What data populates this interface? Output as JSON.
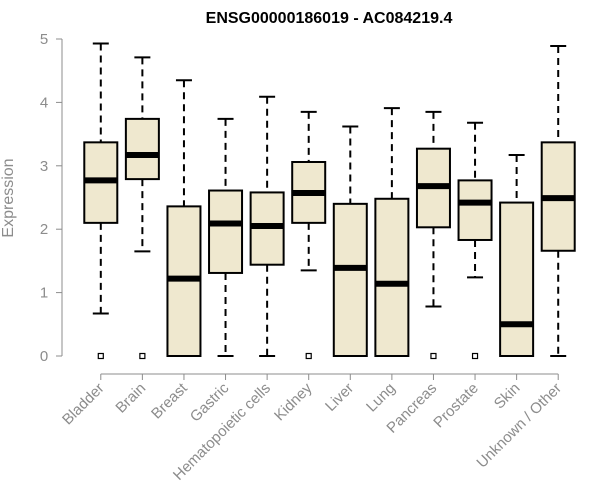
{
  "chart_data": {
    "type": "boxplot",
    "title": "ENSG00000186019 - AC084219.4",
    "xlabel": "",
    "ylabel": "Expression",
    "ylim": [
      0,
      5
    ],
    "yticks": [
      "0",
      "1",
      "2",
      "3",
      "4",
      "5"
    ],
    "grid": false,
    "categories": [
      "Bladder",
      "Brain",
      "Breast",
      "Gastric",
      "Hematopoietic cells",
      "Kidney",
      "Liver",
      "Lung",
      "Pancreas",
      "Prostate",
      "Skin",
      "Unknown / Other"
    ],
    "boxes": [
      {
        "whisker_low": 0.67,
        "q1": 2.1,
        "median": 2.77,
        "q3": 3.37,
        "whisker_high": 4.93,
        "outliers": [
          0
        ]
      },
      {
        "whisker_low": 1.65,
        "q1": 2.79,
        "median": 3.17,
        "q3": 3.74,
        "whisker_high": 4.71,
        "outliers": [
          0
        ]
      },
      {
        "whisker_low": 0,
        "q1": 0,
        "median": 1.22,
        "q3": 2.36,
        "whisker_high": 4.35,
        "outliers": []
      },
      {
        "whisker_low": 0,
        "q1": 1.31,
        "median": 2.09,
        "q3": 2.61,
        "whisker_high": 3.74,
        "outliers": []
      },
      {
        "whisker_low": 0,
        "q1": 1.44,
        "median": 2.05,
        "q3": 2.58,
        "whisker_high": 4.09,
        "outliers": []
      },
      {
        "whisker_low": 1.35,
        "q1": 2.1,
        "median": 2.57,
        "q3": 3.06,
        "whisker_high": 3.85,
        "outliers": [
          0
        ]
      },
      {
        "whisker_low": 0,
        "q1": 0,
        "median": 1.39,
        "q3": 2.4,
        "whisker_high": 3.62,
        "outliers": []
      },
      {
        "whisker_low": 0,
        "q1": 0,
        "median": 1.14,
        "q3": 2.48,
        "whisker_high": 3.91,
        "outliers": []
      },
      {
        "whisker_low": 0.78,
        "q1": 2.03,
        "median": 2.68,
        "q3": 3.27,
        "whisker_high": 3.85,
        "outliers": [
          0
        ]
      },
      {
        "whisker_low": 1.24,
        "q1": 1.83,
        "median": 2.42,
        "q3": 2.77,
        "whisker_high": 3.68,
        "outliers": [
          0
        ]
      },
      {
        "whisker_low": 0,
        "q1": 0,
        "median": 0.5,
        "q3": 2.42,
        "whisker_high": 3.17,
        "outliers": []
      },
      {
        "whisker_low": 0,
        "q1": 1.66,
        "median": 2.49,
        "q3": 3.37,
        "whisker_high": 4.89,
        "outliers": []
      }
    ],
    "colors": {
      "box_fill": "#efe8cf",
      "box_stroke": "#000000",
      "axis": "#8c8c8c",
      "text": "#8c8c8c",
      "title": "#000000"
    }
  }
}
